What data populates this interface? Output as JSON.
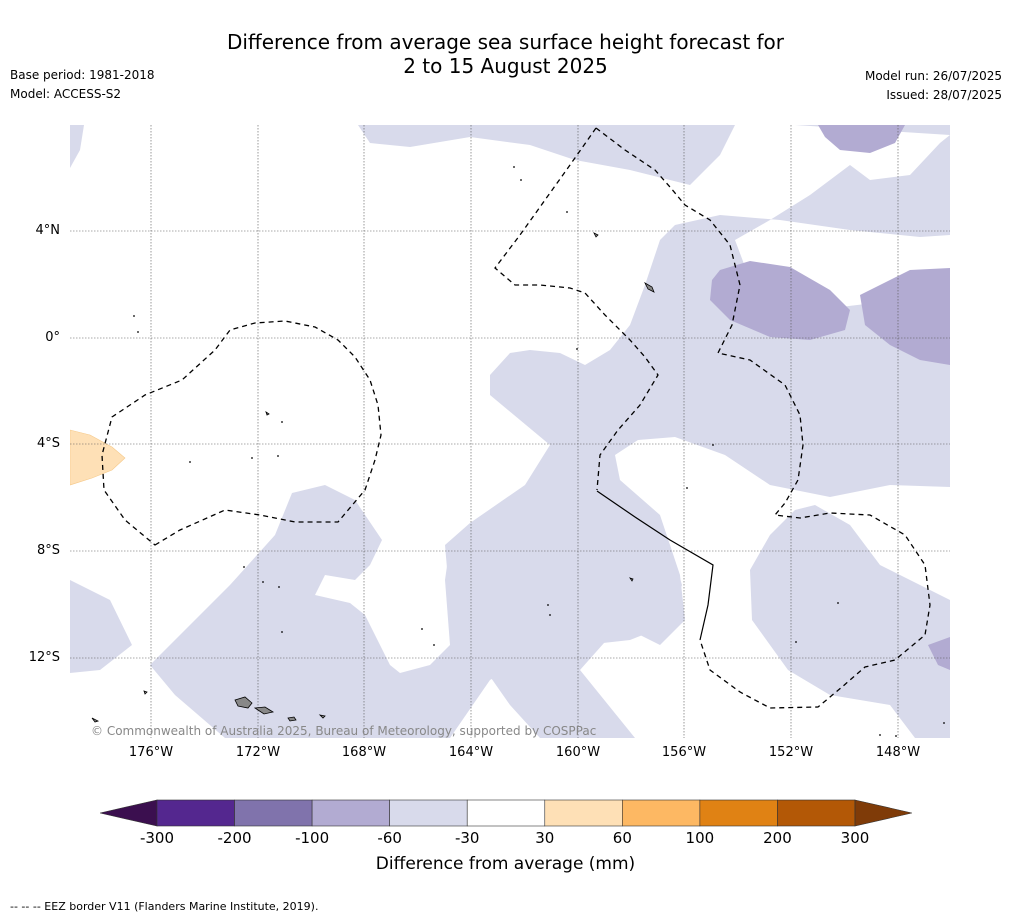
{
  "title_line1": "Difference from average sea surface height forecast for",
  "title_line2": "2 to 15 August 2025",
  "meta_left": [
    "Base period: 1981-2018",
    "Model: ACCESS-S2"
  ],
  "meta_right": [
    "Model run: 26/07/2025",
    "Issued: 28/07/2025"
  ],
  "lat_labels": [
    "4°N",
    "0°",
    "4°S",
    "8°S",
    "12°S"
  ],
  "lon_labels": [
    "176°W",
    "172°W",
    "168°W",
    "164°W",
    "160°W",
    "156°W",
    "152°W",
    "148°W"
  ],
  "copyright": "© Commonwealth of Australia 2025, Bureau of Meteorology, supported by COSPPac",
  "colorbar": {
    "title": "Difference from average (mm)",
    "ticks": [
      "-300",
      "-200",
      "-100",
      "-60",
      "-30",
      "30",
      "60",
      "100",
      "200",
      "300"
    ],
    "colors": [
      "#3b0f4f",
      "#54278f",
      "#8073ac",
      "#b2abd2",
      "#d8daeb",
      "#ffffff",
      "#fee0b6",
      "#fdb863",
      "#e08214",
      "#b35806",
      "#7f3b08"
    ]
  },
  "footer": "--  --  -- EEZ border V11 (Flanders Marine Institute, 2019).",
  "colors": {
    "light_purple": "#d8daeb",
    "mid_purple": "#b2abd2",
    "light_orange": "#fee0b6",
    "grid": "#555555"
  }
}
